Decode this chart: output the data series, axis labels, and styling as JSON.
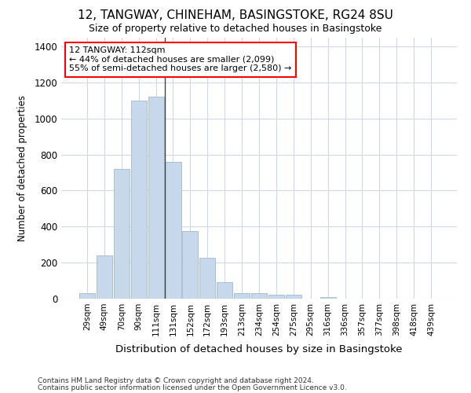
{
  "title": "12, TANGWAY, CHINEHAM, BASINGSTOKE, RG24 8SU",
  "subtitle": "Size of property relative to detached houses in Basingstoke",
  "xlabel": "Distribution of detached houses by size in Basingstoke",
  "ylabel": "Number of detached properties",
  "bar_color": "#c8d8eb",
  "bar_edge_color": "#a0b8d0",
  "marker_line_color": "#444444",
  "categories": [
    "29sqm",
    "49sqm",
    "70sqm",
    "90sqm",
    "111sqm",
    "131sqm",
    "152sqm",
    "172sqm",
    "193sqm",
    "213sqm",
    "234sqm",
    "254sqm",
    "275sqm",
    "295sqm",
    "316sqm",
    "336sqm",
    "357sqm",
    "377sqm",
    "398sqm",
    "418sqm",
    "439sqm"
  ],
  "values": [
    30,
    238,
    720,
    1100,
    1120,
    760,
    375,
    228,
    90,
    30,
    30,
    20,
    20,
    0,
    10,
    0,
    0,
    0,
    0,
    0,
    0
  ],
  "ylim": [
    0,
    1450
  ],
  "yticks": [
    0,
    200,
    400,
    600,
    800,
    1000,
    1200,
    1400
  ],
  "property_bin_index": 4,
  "annotation_text": "12 TANGWAY: 112sqm\n← 44% of detached houses are smaller (2,099)\n55% of semi-detached houses are larger (2,580) →",
  "footnote1": "Contains HM Land Registry data © Crown copyright and database right 2024.",
  "footnote2": "Contains public sector information licensed under the Open Government Licence v3.0.",
  "background_color": "#ffffff",
  "plot_bg_color": "#ffffff",
  "grid_color": "#d0d8e8"
}
